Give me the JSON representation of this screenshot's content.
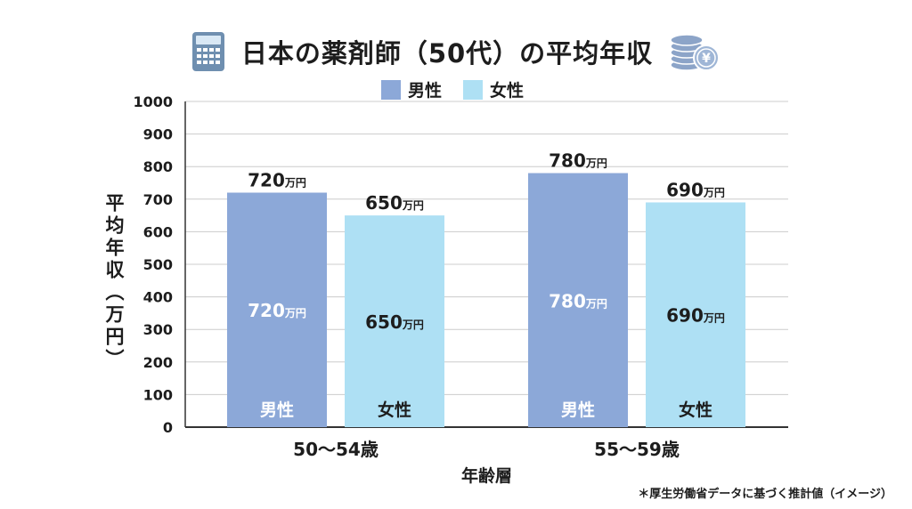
{
  "title": "日本の薬剤師（50代）の平均年収",
  "icons": {
    "left": "calculator-icon",
    "right": "yen-coins-icon"
  },
  "colors": {
    "male": "#8ca8d8",
    "female": "#aee0f4",
    "grid": "#cccccc",
    "axis": "#333333"
  },
  "note": "＊厚生労働省データに基づく推計値（イメージ）",
  "chart_data": {
    "type": "bar",
    "title": "日本の薬剤師（50代）の平均年収",
    "categories": [
      "50〜54歳",
      "55〜59歳"
    ],
    "series": [
      {
        "name": "男性",
        "values": [
          720,
          780
        ]
      },
      {
        "name": "女性",
        "values": [
          650,
          690
        ]
      }
    ],
    "unit": "万円",
    "xlabel": "年齢層",
    "ylabel": "平均年収（万円）",
    "ylim": [
      0,
      1000
    ],
    "yticks": [
      "0",
      "100",
      "200",
      "300",
      "400",
      "500",
      "600",
      "700",
      "800",
      "900",
      "1000"
    ],
    "grid": true,
    "legend": "top-center"
  }
}
